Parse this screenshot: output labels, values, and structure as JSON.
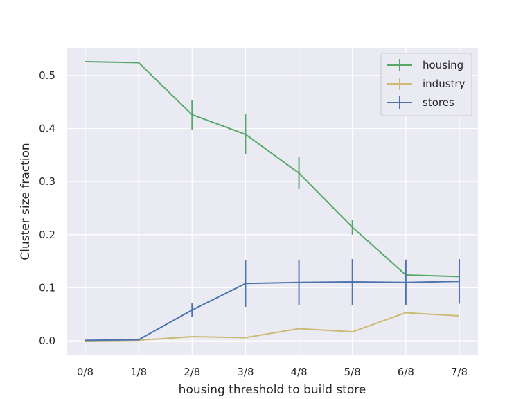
{
  "chart_data": {
    "type": "line",
    "title": "",
    "xlabel": "housing threshold to build store",
    "ylabel": "Cluster size fraction",
    "categories": [
      "0/8",
      "1/8",
      "2/8",
      "3/8",
      "4/8",
      "5/8",
      "6/8",
      "7/8"
    ],
    "ylim": [
      -0.026,
      0.552
    ],
    "yticks": [
      0.0,
      0.1,
      0.2,
      0.3,
      0.4,
      0.5
    ],
    "ytick_labels": [
      "0.0",
      "0.1",
      "0.2",
      "0.3",
      "0.4",
      "0.5"
    ],
    "grid": true,
    "legend_position": "top-right",
    "series": [
      {
        "name": "housing",
        "color": "#55a868",
        "values": [
          0.526,
          0.524,
          0.426,
          0.389,
          0.316,
          0.214,
          0.124,
          0.121
        ],
        "errors": [
          0.0,
          0.0,
          0.028,
          0.038,
          0.03,
          0.014,
          0.0,
          0.0
        ]
      },
      {
        "name": "industry",
        "color": "#ccb974",
        "values": [
          0.0,
          0.001,
          0.008,
          0.006,
          0.023,
          0.017,
          0.053,
          0.047
        ],
        "errors": [
          0.0,
          0.0,
          0.0,
          0.0,
          0.0,
          0.0,
          0.0,
          0.0
        ]
      },
      {
        "name": "stores",
        "color": "#4c72b0",
        "values": [
          0.001,
          0.002,
          0.058,
          0.108,
          0.11,
          0.111,
          0.11,
          0.112
        ],
        "errors": [
          0.0,
          0.0,
          0.013,
          0.044,
          0.043,
          0.043,
          0.043,
          0.042
        ]
      }
    ]
  }
}
